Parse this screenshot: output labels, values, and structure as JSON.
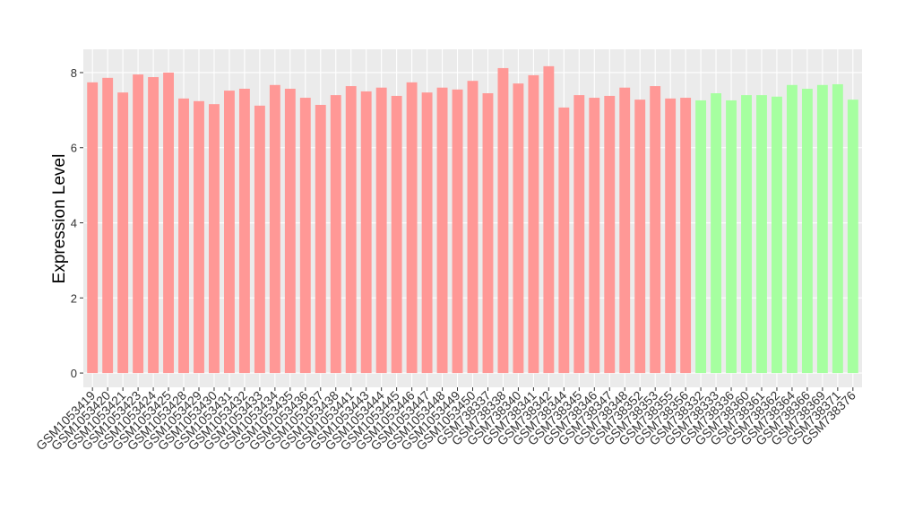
{
  "chart_data": {
    "type": "bar",
    "y_label": "Expression Level",
    "categories": [
      "GSM1053419",
      "GSM1053420",
      "GSM1053421",
      "GSM1053423",
      "GSM1053424",
      "GSM1053425",
      "GSM1053428",
      "GSM1053429",
      "GSM1053430",
      "GSM1053431",
      "GSM1053432",
      "GSM1053433",
      "GSM1053434",
      "GSM1053435",
      "GSM1053436",
      "GSM1053437",
      "GSM1053438",
      "GSM1053441",
      "GSM1053443",
      "GSM1053444",
      "GSM1053445",
      "GSM1053446",
      "GSM1053447",
      "GSM1053448",
      "GSM1053449",
      "GSM1053450",
      "GSM738337",
      "GSM738338",
      "GSM738340",
      "GSM738341",
      "GSM738342",
      "GSM738344",
      "GSM738345",
      "GSM738346",
      "GSM738347",
      "GSM738348",
      "GSM738352",
      "GSM738353",
      "GSM738355",
      "GSM738356",
      "GSM738332",
      "GSM738333",
      "GSM738336",
      "GSM738360",
      "GSM738361",
      "GSM738362",
      "GSM738364",
      "GSM738366",
      "GSM738369",
      "GSM738371",
      "GSM738376"
    ],
    "values": [
      7.74,
      7.86,
      7.47,
      7.95,
      7.88,
      8.0,
      7.31,
      7.24,
      7.16,
      7.52,
      7.57,
      7.12,
      7.67,
      7.57,
      7.33,
      7.14,
      7.4,
      7.64,
      7.5,
      7.6,
      7.38,
      7.74,
      7.47,
      7.6,
      7.55,
      7.78,
      7.45,
      8.12,
      7.71,
      7.93,
      8.17,
      7.07,
      7.4,
      7.33,
      7.38,
      7.6,
      7.28,
      7.64,
      7.31,
      7.33,
      7.26,
      7.45,
      7.26,
      7.4,
      7.4,
      7.36,
      7.67,
      7.57,
      7.67,
      7.69,
      7.28
    ],
    "colors": [
      "#ff9896",
      "#ff9896",
      "#ff9896",
      "#ff9896",
      "#ff9896",
      "#ff9896",
      "#ff9896",
      "#ff9896",
      "#ff9896",
      "#ff9896",
      "#ff9896",
      "#ff9896",
      "#ff9896",
      "#ff9896",
      "#ff9896",
      "#ff9896",
      "#ff9896",
      "#ff9896",
      "#ff9896",
      "#ff9896",
      "#ff9896",
      "#ff9896",
      "#ff9896",
      "#ff9896",
      "#ff9896",
      "#ff9896",
      "#ff9896",
      "#ff9896",
      "#ff9896",
      "#ff9896",
      "#ff9896",
      "#ff9896",
      "#ff9896",
      "#ff9896",
      "#ff9896",
      "#ff9896",
      "#ff9896",
      "#ff9896",
      "#ff9896",
      "#ff9896",
      "#a6ffa0",
      "#a6ffa0",
      "#a6ffa0",
      "#a6ffa0",
      "#a6ffa0",
      "#a6ffa0",
      "#a6ffa0",
      "#a6ffa0",
      "#a6ffa0",
      "#a6ffa0",
      "#a6ffa0"
    ],
    "ylim": [
      -0.38,
      8.62
    ],
    "yticks": [
      0,
      2,
      4,
      6,
      8
    ],
    "grid": true
  }
}
